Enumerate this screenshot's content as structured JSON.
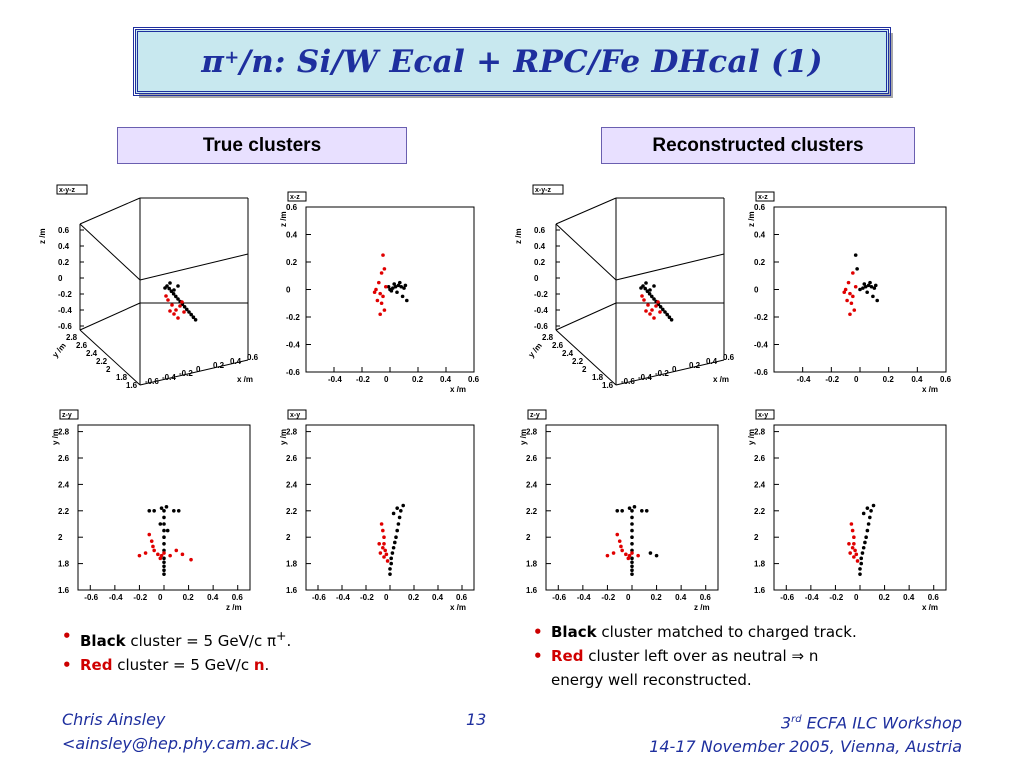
{
  "title": {
    "pre": "π",
    "sup": "+",
    "post": "/n: Si/W Ecal + RPC/Fe DHcal (1)"
  },
  "headers": {
    "true": "True clusters",
    "reco": "Reconstructed clusters"
  },
  "plot_labels": {
    "xyz": "x-y-z",
    "xz": "x-z",
    "zy": "z-y",
    "xy": "x-y"
  },
  "axis_units": {
    "x": "x /m",
    "y": "y /m",
    "z": "z /m"
  },
  "bullets_left": [
    {
      "bold": "Black",
      "text": " cluster = 5 GeV/c  π",
      "sup": "+",
      "end": "."
    },
    {
      "bold": "Red",
      "text": " cluster = 5 GeV/c  ",
      "tail_bold": "n",
      "end": "."
    }
  ],
  "bullets_right": [
    {
      "bold": "Black",
      "text": " cluster matched to charged track."
    },
    {
      "bold": "Red",
      "text": " cluster left over as neutral ⇒ n",
      "cont": "energy well reconstructed."
    }
  ],
  "footer": {
    "author": "Chris Ainsley",
    "email": "<ainsley@hep.phy.cam.ac.uk>",
    "page": "13",
    "event_num": "3",
    "event_sup": "rd",
    "event_rest": " ECFA ILC Workshop",
    "event_line2": "14-17 November 2005, Vienna, Austria"
  },
  "colors": {
    "title_blue": "#1e2f9e",
    "title_bg": "#c8e8ef",
    "header_bg": "#e8e0ff",
    "red": "#e00000",
    "black": "#000000"
  },
  "chart_data": [
    {
      "type": "scatter",
      "panel": "true",
      "view": "x-y-z",
      "xlabel": "x /m",
      "ylabel": "y /m",
      "zlabel": "z /m",
      "x_ticks": [
        "-0.6",
        "-0.4",
        "-0.2",
        "0",
        "0.2",
        "0.4",
        "0.6"
      ],
      "y_ticks": [
        "1.6",
        "1.8",
        "2",
        "2.2",
        "2.4",
        "2.6",
        "2.8"
      ],
      "z_ticks": [
        "-0.6",
        "-0.4",
        "-0.2",
        "0",
        "0.2",
        "0.4",
        "0.6"
      ]
    },
    {
      "type": "scatter",
      "panel": "true",
      "view": "x-z",
      "xlabel": "x /m",
      "ylabel": "z /m",
      "xlim": [
        -0.6,
        0.6
      ],
      "ylim": [
        -0.6,
        0.6
      ],
      "series": [
        {
          "color": "black",
          "points": [
            [
              0.0,
              0.0
            ],
            [
              0.02,
              0.01
            ],
            [
              0.04,
              0.02
            ],
            [
              0.06,
              0.03
            ],
            [
              0.08,
              0.02
            ],
            [
              0.1,
              0.01
            ],
            [
              0.05,
              -0.02
            ],
            [
              0.09,
              -0.05
            ],
            [
              0.12,
              -0.08
            ],
            [
              0.03,
              0.04
            ],
            [
              0.07,
              0.05
            ],
            [
              0.01,
              -0.01
            ],
            [
              -0.01,
              0.02
            ],
            [
              0.11,
              0.03
            ]
          ]
        },
        {
          "color": "red",
          "points": [
            [
              -0.05,
              0.25
            ],
            [
              -0.04,
              0.15
            ],
            [
              -0.06,
              0.12
            ],
            [
              -0.08,
              0.05
            ],
            [
              -0.1,
              0.0
            ],
            [
              -0.07,
              -0.03
            ],
            [
              -0.05,
              -0.05
            ],
            [
              -0.09,
              -0.08
            ],
            [
              -0.06,
              -0.1
            ],
            [
              -0.04,
              -0.15
            ],
            [
              -0.07,
              -0.18
            ],
            [
              -0.11,
              -0.02
            ],
            [
              -0.03,
              0.02
            ]
          ]
        }
      ]
    },
    {
      "type": "scatter",
      "panel": "true",
      "view": "z-y",
      "xlabel": "z /m",
      "ylabel": "y /m",
      "xlim": [
        -0.7,
        0.7
      ],
      "ylim": [
        1.6,
        2.85
      ],
      "series": [
        {
          "color": "black",
          "points": [
            [
              0.0,
              1.72
            ],
            [
              0.0,
              1.75
            ],
            [
              0.0,
              1.78
            ],
            [
              0.0,
              1.81
            ],
            [
              0.0,
              1.84
            ],
            [
              0.0,
              1.9
            ],
            [
              0.0,
              1.95
            ],
            [
              0.0,
              2.0
            ],
            [
              0.0,
              2.05
            ],
            [
              0.0,
              2.1
            ],
            [
              0.0,
              2.15
            ],
            [
              0.0,
              2.2
            ],
            [
              0.02,
              2.23
            ],
            [
              -0.02,
              2.22
            ],
            [
              -0.08,
              2.2
            ],
            [
              -0.12,
              2.2
            ],
            [
              0.08,
              2.2
            ],
            [
              0.12,
              2.2
            ],
            [
              0.03,
              2.05
            ],
            [
              -0.03,
              2.1
            ]
          ]
        },
        {
          "color": "red",
          "points": [
            [
              -0.12,
              2.02
            ],
            [
              -0.1,
              1.97
            ],
            [
              -0.09,
              1.93
            ],
            [
              -0.08,
              1.9
            ],
            [
              -0.05,
              1.87
            ],
            [
              -0.02,
              1.86
            ],
            [
              -0.15,
              1.88
            ],
            [
              -0.2,
              1.86
            ],
            [
              0.05,
              1.86
            ],
            [
              0.1,
              1.9
            ],
            [
              0.15,
              1.87
            ],
            [
              0.22,
              1.83
            ],
            [
              -0.03,
              1.84
            ],
            [
              0.0,
              1.88
            ]
          ]
        }
      ]
    },
    {
      "type": "scatter",
      "panel": "true",
      "view": "x-y",
      "xlabel": "x /m",
      "ylabel": "y /m",
      "xlim": [
        -0.7,
        0.7
      ],
      "ylim": [
        1.6,
        2.85
      ],
      "series": [
        {
          "color": "black",
          "points": [
            [
              0.0,
              1.72
            ],
            [
              0.0,
              1.76
            ],
            [
              0.01,
              1.8
            ],
            [
              0.01,
              1.84
            ],
            [
              0.02,
              1.88
            ],
            [
              0.03,
              1.92
            ],
            [
              0.04,
              1.96
            ],
            [
              0.05,
              2.0
            ],
            [
              0.06,
              2.05
            ],
            [
              0.07,
              2.1
            ],
            [
              0.08,
              2.15
            ],
            [
              0.09,
              2.2
            ],
            [
              0.11,
              2.24
            ],
            [
              0.06,
              2.22
            ],
            [
              0.03,
              2.18
            ]
          ]
        },
        {
          "color": "red",
          "points": [
            [
              -0.07,
              2.1
            ],
            [
              -0.06,
              2.05
            ],
            [
              -0.05,
              2.0
            ],
            [
              -0.05,
              1.95
            ],
            [
              -0.04,
              1.9
            ],
            [
              -0.03,
              1.87
            ],
            [
              -0.05,
              1.85
            ],
            [
              -0.08,
              1.88
            ],
            [
              -0.02,
              1.82
            ],
            [
              -0.06,
              1.92
            ],
            [
              -0.09,
              1.95
            ]
          ]
        }
      ]
    },
    {
      "type": "scatter",
      "panel": "reco",
      "view": "x-y-z",
      "xlabel": "x /m",
      "ylabel": "y /m",
      "zlabel": "z /m"
    },
    {
      "type": "scatter",
      "panel": "reco",
      "view": "x-z",
      "xlabel": "x /m",
      "ylabel": "z /m",
      "xlim": [
        -0.6,
        0.6
      ],
      "ylim": [
        -0.6,
        0.6
      ],
      "series": [
        {
          "color": "black",
          "points": [
            [
              0.0,
              0.0
            ],
            [
              0.02,
              0.01
            ],
            [
              0.04,
              0.02
            ],
            [
              0.06,
              0.03
            ],
            [
              0.08,
              0.02
            ],
            [
              0.1,
              0.01
            ],
            [
              0.05,
              -0.02
            ],
            [
              0.09,
              -0.05
            ],
            [
              0.12,
              -0.08
            ],
            [
              0.03,
              0.04
            ],
            [
              0.07,
              0.05
            ],
            [
              -0.03,
              0.25
            ],
            [
              -0.02,
              0.15
            ],
            [
              0.11,
              0.03
            ]
          ]
        },
        {
          "color": "red",
          "points": [
            [
              -0.05,
              0.12
            ],
            [
              -0.08,
              0.05
            ],
            [
              -0.1,
              0.0
            ],
            [
              -0.07,
              -0.03
            ],
            [
              -0.05,
              -0.05
            ],
            [
              -0.09,
              -0.08
            ],
            [
              -0.06,
              -0.1
            ],
            [
              -0.04,
              -0.15
            ],
            [
              -0.07,
              -0.18
            ],
            [
              -0.11,
              -0.02
            ],
            [
              -0.03,
              0.02
            ]
          ]
        }
      ]
    },
    {
      "type": "scatter",
      "panel": "reco",
      "view": "z-y",
      "xlabel": "z /m",
      "ylabel": "y /m",
      "xlim": [
        -0.7,
        0.7
      ],
      "ylim": [
        1.6,
        2.85
      ],
      "series": [
        {
          "color": "black",
          "points": [
            [
              0.0,
              1.72
            ],
            [
              0.0,
              1.75
            ],
            [
              0.0,
              1.78
            ],
            [
              0.0,
              1.81
            ],
            [
              0.0,
              1.84
            ],
            [
              0.0,
              1.9
            ],
            [
              0.0,
              1.95
            ],
            [
              0.0,
              2.0
            ],
            [
              0.0,
              2.05
            ],
            [
              0.0,
              2.1
            ],
            [
              0.0,
              2.15
            ],
            [
              0.0,
              2.2
            ],
            [
              0.02,
              2.23
            ],
            [
              -0.02,
              2.22
            ],
            [
              -0.08,
              2.2
            ],
            [
              -0.12,
              2.2
            ],
            [
              0.08,
              2.2
            ],
            [
              0.12,
              2.2
            ],
            [
              0.2,
              1.86
            ],
            [
              0.15,
              1.88
            ]
          ]
        },
        {
          "color": "red",
          "points": [
            [
              -0.12,
              2.02
            ],
            [
              -0.1,
              1.97
            ],
            [
              -0.09,
              1.93
            ],
            [
              -0.08,
              1.9
            ],
            [
              -0.05,
              1.87
            ],
            [
              -0.02,
              1.86
            ],
            [
              -0.15,
              1.88
            ],
            [
              -0.2,
              1.86
            ],
            [
              0.05,
              1.86
            ],
            [
              -0.03,
              1.84
            ],
            [
              0.0,
              1.88
            ]
          ]
        }
      ]
    },
    {
      "type": "scatter",
      "panel": "reco",
      "view": "x-y",
      "xlabel": "x /m",
      "ylabel": "y /m",
      "xlim": [
        -0.7,
        0.7
      ],
      "ylim": [
        1.6,
        2.85
      ],
      "series": [
        {
          "color": "black",
          "points": [
            [
              0.0,
              1.72
            ],
            [
              0.0,
              1.76
            ],
            [
              0.01,
              1.8
            ],
            [
              0.01,
              1.84
            ],
            [
              0.02,
              1.88
            ],
            [
              0.03,
              1.92
            ],
            [
              0.04,
              1.96
            ],
            [
              0.05,
              2.0
            ],
            [
              0.06,
              2.05
            ],
            [
              0.07,
              2.1
            ],
            [
              0.08,
              2.15
            ],
            [
              0.09,
              2.2
            ],
            [
              0.11,
              2.24
            ],
            [
              0.06,
              2.22
            ],
            [
              0.03,
              2.18
            ]
          ]
        },
        {
          "color": "red",
          "points": [
            [
              -0.07,
              2.1
            ],
            [
              -0.06,
              2.05
            ],
            [
              -0.05,
              2.0
            ],
            [
              -0.05,
              1.95
            ],
            [
              -0.04,
              1.9
            ],
            [
              -0.03,
              1.87
            ],
            [
              -0.05,
              1.85
            ],
            [
              -0.08,
              1.88
            ],
            [
              -0.02,
              1.82
            ],
            [
              -0.06,
              1.92
            ],
            [
              -0.09,
              1.95
            ]
          ]
        }
      ]
    }
  ]
}
